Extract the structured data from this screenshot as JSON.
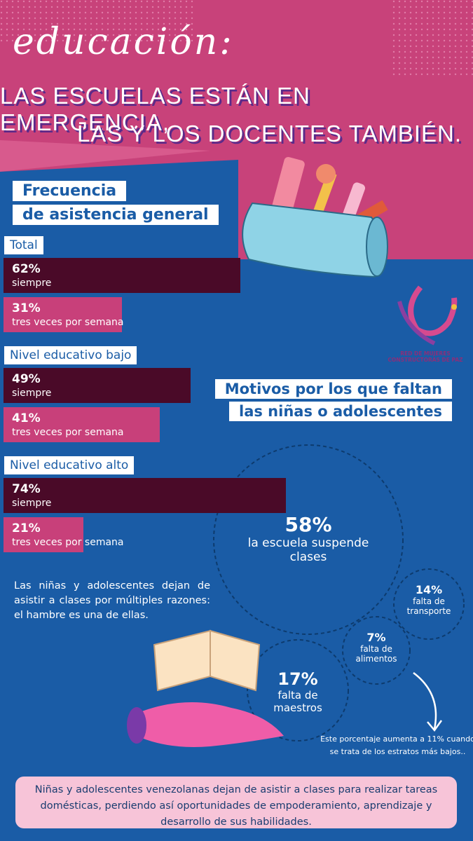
{
  "header": {
    "title": "educación:",
    "subtitle_lines": [
      "LAS ESCUELAS ESTÁN EN EMERGENCIA,",
      "LAS Y LOS DOCENTES TAMBIÉN."
    ]
  },
  "attendance": {
    "title_lines": [
      "Frecuencia",
      "de asistencia general"
    ],
    "groups": [
      {
        "label": "Total",
        "bars": [
          {
            "value": 62,
            "label": "62%",
            "caption": "siempre"
          },
          {
            "value": 31,
            "label": "31%",
            "caption": "tres veces por semana"
          }
        ]
      },
      {
        "label": "Nivel educativo bajo",
        "bars": [
          {
            "value": 49,
            "label": "49%",
            "caption": "siempre"
          },
          {
            "value": 41,
            "label": "41%",
            "caption": "tres veces por semana"
          }
        ]
      },
      {
        "label": "Nivel educativo alto",
        "bars": [
          {
            "value": 74,
            "label": "74%",
            "caption": "siempre"
          },
          {
            "value": 21,
            "label": "21%",
            "caption": "tres veces por semana"
          }
        ]
      }
    ]
  },
  "logo": {
    "lines": [
      "RED DE MUJERES",
      "CONSTRUCTORAS DE PAZ"
    ]
  },
  "reasons": {
    "title_lines": [
      "Motivos por los que faltan",
      "las niñas o adolescentes"
    ],
    "items": [
      {
        "label": "58%",
        "text_lines": [
          "la escuela suspende",
          "clases"
        ]
      },
      {
        "label": "14%",
        "text_lines": [
          "falta de",
          "transporte"
        ]
      },
      {
        "label": "7%",
        "text_lines": [
          "falta de",
          "alimentos"
        ]
      },
      {
        "label": "17%",
        "text_lines": [
          "falta de",
          "maestros"
        ]
      }
    ]
  },
  "note": "Las niñas y adolescentes dejan de asistir a clases por múltiples razones: el hambre es una de ellas.",
  "footnote_lines": [
    "Este porcentaje aumenta a 11% cuando",
    "se trata de los estratos más bajos.."
  ],
  "footer": "Niñas y adolescentes venezolanas dejan de asistir a clases para realizar tareas domésticas, perdiendo así oportunidades de empoderamiento, aprendizaje y desarrollo de sus habilidades."
}
